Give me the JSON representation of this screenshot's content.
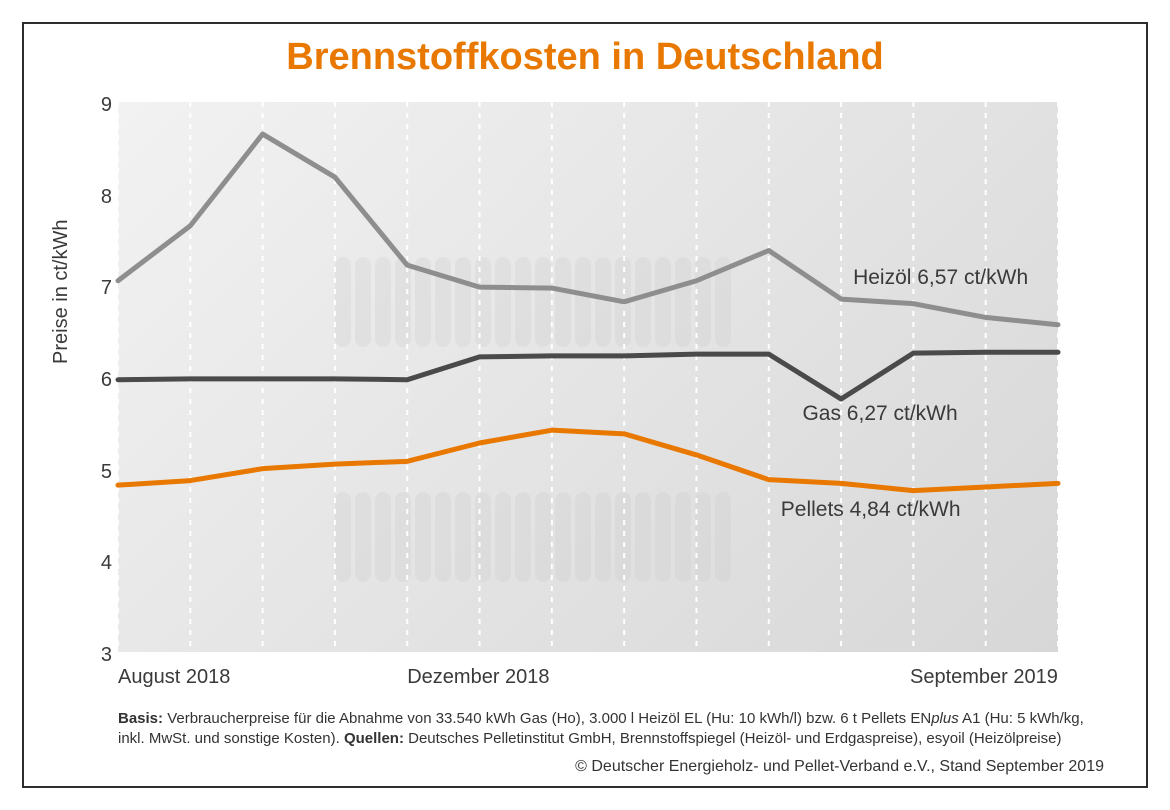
{
  "title": "Brennstoffkosten in Deutschland",
  "chart": {
    "type": "line",
    "background_gradient": [
      "#f2f2f2",
      "#d7d7d7"
    ],
    "grid_color": "#ffffff",
    "grid_dash": "5,6",
    "y": {
      "label": "Preise in ct/kWh",
      "lim": [
        3,
        9
      ],
      "ticks": [
        3,
        4,
        5,
        6,
        7,
        8,
        9
      ],
      "tick_fontsize": 20,
      "label_fontsize": 20
    },
    "x": {
      "n": 14,
      "ticks": [
        {
          "i": 0,
          "label": "August 2018"
        },
        {
          "i": 4,
          "label": "Dezember 2018"
        },
        {
          "i": 13,
          "label": "September 2019"
        }
      ],
      "tick_fontsize": 20
    },
    "series": {
      "heizoel": {
        "color": "#8e8e8e",
        "width": 5,
        "label": "Heizöl 6,57 ct/kWh",
        "values": [
          7.05,
          7.65,
          8.65,
          8.18,
          7.22,
          6.98,
          6.97,
          6.82,
          7.05,
          7.38,
          6.85,
          6.8,
          6.65,
          6.57
        ]
      },
      "gas": {
        "color": "#4a4a4a",
        "width": 5,
        "label": "Gas  6,27 ct/kWh",
        "values": [
          5.97,
          5.98,
          5.98,
          5.98,
          5.97,
          6.22,
          6.23,
          6.23,
          6.25,
          6.25,
          5.76,
          6.26,
          6.27,
          6.27
        ]
      },
      "pellets": {
        "color": "#e97800",
        "width": 5,
        "label": "Pellets  4,84 ct/kWh",
        "values": [
          4.82,
          4.87,
          5.0,
          5.05,
          5.08,
          5.28,
          5.42,
          5.38,
          5.15,
          4.88,
          4.84,
          4.76,
          4.8,
          4.84
        ]
      }
    },
    "labels_pos": {
      "heizoel": {
        "x_i": 10.0,
        "y": 7.08
      },
      "gas": {
        "x_i": 9.3,
        "y": 5.6
      },
      "pellets": {
        "x_i": 9.0,
        "y": 4.55
      }
    }
  },
  "basis_html": "<b>Basis:</b> Verbraucherpreise für die Abnahme von 33.540 kWh Gas (Ho), 3.000 l Heizöl EL (Hu: 10 kWh/l) bzw. 6 t Pellets EN<i>plus</i> A1 (Hu: 5 kWh/kg, inkl. MwSt. und sonstige Kosten). <b>Quellen:</b> Deutsches Pelletinstitut GmbH, Brennstoffspiegel (Heizöl- und Erdgaspreise), esyoil (Heizölpreise)",
  "copyright": "© Deutscher Energieholz- und Pellet-Verband e.V., Stand September 2019",
  "colors": {
    "frame": "#2d2d2d",
    "title": "#e97800"
  }
}
